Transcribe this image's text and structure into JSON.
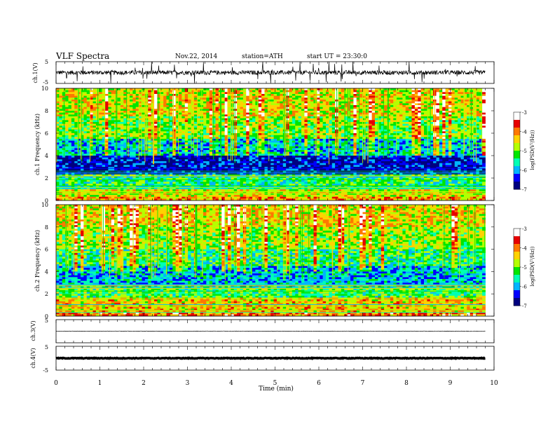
{
  "header": {
    "title": "VLF Spectra",
    "date": "Nov.22, 2014",
    "station": "station=ATH",
    "start": "start UT = 23:30:0"
  },
  "colors": {
    "colormap": [
      "#000000",
      "#000080",
      "#0000ff",
      "#00b4ff",
      "#00ffb4",
      "#00e600",
      "#b4ff00",
      "#ffd200",
      "#ff7800",
      "#e60000",
      "#ffffff"
    ],
    "trace": "#000000"
  },
  "chart_data": [
    {
      "type": "line",
      "name": "ch1-waveform",
      "ylabel": "ch.1(V)",
      "ylim": [
        -5,
        5
      ],
      "y_ticks": [
        "5",
        "-5"
      ],
      "x_range_min": [
        0,
        9.8
      ],
      "baseline_v": 0.0,
      "noise_amplitude_v": 2.0,
      "spike_amplitude_v": 5.0
    },
    {
      "type": "heatmap",
      "name": "ch1-spectrogram",
      "ylabel": "ch.1 Frequency (kHz)",
      "ylim": [
        0,
        10
      ],
      "y_ticks": [
        "0",
        "2",
        "4",
        "6",
        "8",
        "10"
      ],
      "x_range_min": [
        0,
        9.8
      ],
      "colorbar": {
        "label": "log(PSD(V²/Hz))",
        "range": [
          -7,
          -3
        ],
        "ticks": [
          "-3",
          "-4",
          "-5",
          "-6",
          "-7"
        ]
      },
      "bands": [
        {
          "f": [
            0.0,
            0.3
          ],
          "logpsd": -4.2
        },
        {
          "f": [
            0.3,
            1.0
          ],
          "logpsd": -4.6
        },
        {
          "f": [
            1.0,
            2.4
          ],
          "logpsd": -5.4
        },
        {
          "f": [
            2.4,
            4.0
          ],
          "logpsd": -6.6
        },
        {
          "f": [
            4.0,
            5.5
          ],
          "logpsd": -5.8
        },
        {
          "f": [
            5.5,
            7.5
          ],
          "logpsd": -5.0
        },
        {
          "f": [
            7.5,
            10.0
          ],
          "logpsd": -4.6
        }
      ]
    },
    {
      "type": "heatmap",
      "name": "ch2-spectrogram",
      "ylabel": "ch.2 Frequency (kHz)",
      "ylim": [
        0,
        10
      ],
      "y_ticks": [
        "0",
        "2",
        "4",
        "6",
        "8",
        "10"
      ],
      "x_range_min": [
        0,
        9.8
      ],
      "colorbar": {
        "label": "log(PSD(V²/Hz))",
        "range": [
          -7,
          -3
        ],
        "ticks": [
          "-3",
          "-4",
          "-5",
          "-6",
          "-7"
        ]
      },
      "bands": [
        {
          "f": [
            0.0,
            0.3
          ],
          "logpsd": -4.0
        },
        {
          "f": [
            0.3,
            1.6
          ],
          "logpsd": -4.4
        },
        {
          "f": [
            1.6,
            2.6
          ],
          "logpsd": -5.2
        },
        {
          "f": [
            2.6,
            4.5
          ],
          "logpsd": -5.9
        },
        {
          "f": [
            4.5,
            6.0
          ],
          "logpsd": -5.4
        },
        {
          "f": [
            6.0,
            8.0
          ],
          "logpsd": -4.9
        },
        {
          "f": [
            8.0,
            10.0
          ],
          "logpsd": -4.5
        }
      ]
    },
    {
      "type": "line",
      "name": "ch3-waveform",
      "ylabel": "ch.3(V)",
      "ylim": [
        -5,
        5
      ],
      "y_ticks": [
        "5",
        "-5"
      ],
      "x_range_min": [
        0,
        9.8
      ],
      "baseline_v": 0.0,
      "noise_amplitude_v": 0.2
    },
    {
      "type": "line",
      "name": "ch4-waveform",
      "ylabel": "ch.4(V)",
      "ylim": [
        -5,
        5
      ],
      "y_ticks": [
        "5",
        "-5"
      ],
      "x_range_min": [
        0,
        9.8
      ],
      "baseline_v": 0.0,
      "noise_amplitude_v": 0.3
    }
  ],
  "xaxis": {
    "label": "Time (min)",
    "range": [
      0,
      10
    ],
    "ticks": [
      "0",
      "1",
      "2",
      "3",
      "4",
      "5",
      "6",
      "7",
      "8",
      "9",
      "10"
    ]
  }
}
